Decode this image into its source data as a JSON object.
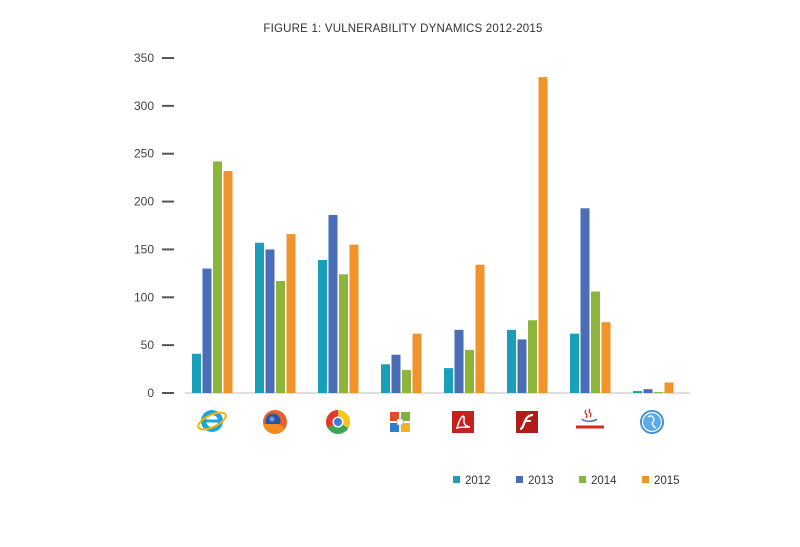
{
  "colors": {
    "s2012": "#1a9fb8",
    "s2013": "#4a6db5",
    "s2014": "#8db53a",
    "s2015": "#f0932a"
  },
  "chart_data": {
    "type": "bar",
    "title": "FIGURE 1: VULNERABILITY DYNAMICS 2012-2015",
    "xlabel": "",
    "ylabel": "",
    "ylim": [
      0,
      350
    ],
    "yticks": [
      0,
      50,
      100,
      150,
      200,
      250,
      300,
      350
    ],
    "grid": false,
    "legend_position": "bottom-right",
    "categories": [
      "internet-explorer-icon",
      "firefox-icon",
      "chrome-icon",
      "microsoft-office-icon",
      "adobe-reader-icon",
      "adobe-flash-icon",
      "oracle-java-icon",
      "safari-quicktime-icon"
    ],
    "series": [
      {
        "name": "2012",
        "values": [
          41,
          157,
          139,
          30,
          26,
          66,
          62,
          2
        ]
      },
      {
        "name": "2013",
        "values": [
          130,
          150,
          186,
          40,
          66,
          56,
          193,
          4
        ]
      },
      {
        "name": "2014",
        "values": [
          242,
          117,
          124,
          24,
          45,
          76,
          106,
          1
        ]
      },
      {
        "name": "2015",
        "values": [
          232,
          166,
          155,
          62,
          134,
          330,
          74,
          11
        ]
      }
    ]
  }
}
